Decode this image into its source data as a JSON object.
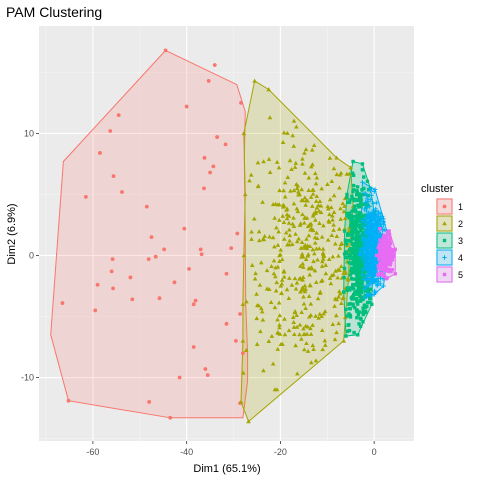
{
  "chart_data": {
    "type": "scatter",
    "title": "PAM Clustering",
    "xlabel": "Dim1 (65.1%)",
    "ylabel": "Dim2 (6.9%)",
    "xlim": [
      -71.5,
      8.5
    ],
    "ylim": [
      -15.2,
      18.8
    ],
    "x_ticks": [
      -60,
      -40,
      -20,
      0
    ],
    "y_ticks": [
      -10,
      0,
      10
    ],
    "x_tick_labels": [
      "-60",
      "-40",
      "-20",
      "0"
    ],
    "y_tick_labels": [
      "-10",
      "0",
      "10"
    ],
    "grid": true,
    "legend": {
      "title": "cluster",
      "position": "right",
      "labels": [
        "1",
        "2",
        "3",
        "4",
        "5"
      ]
    },
    "series": [
      {
        "name": "1",
        "color": "#F8766D",
        "marker": "circle",
        "hull": [
          [
            -44.5,
            16.8
          ],
          [
            -29.3,
            14.0
          ],
          [
            -27.5,
            11.8
          ],
          [
            -27.7,
            8.0
          ],
          [
            -27.5,
            2.0
          ],
          [
            -27.4,
            -4.0
          ],
          [
            -27.0,
            -8.0
          ],
          [
            -27.0,
            -10.3
          ],
          [
            -28.0,
            -13.3
          ],
          [
            -43.5,
            -13.3
          ],
          [
            -65.2,
            -11.9
          ],
          [
            -69.0,
            -6.5
          ],
          [
            -66.3,
            7.7
          ]
        ],
        "points": [
          [
            -44.5,
            16.8
          ],
          [
            -34.0,
            15.6
          ],
          [
            -35.3,
            14.3
          ],
          [
            -40.0,
            12.2
          ],
          [
            -28.4,
            12.5
          ],
          [
            -54.5,
            11.5
          ],
          [
            -56.3,
            10.2
          ],
          [
            -33.5,
            9.7
          ],
          [
            -31.7,
            9.1
          ],
          [
            -58.5,
            8.4
          ],
          [
            -36.2,
            8.0
          ],
          [
            -34.3,
            7.3
          ],
          [
            -55.6,
            6.5
          ],
          [
            -35.0,
            6.8
          ],
          [
            -36.3,
            5.5
          ],
          [
            -53.8,
            5.2
          ],
          [
            -61.5,
            4.8
          ],
          [
            -48.5,
            4.0
          ],
          [
            -40.5,
            2.2
          ],
          [
            -47.5,
            1.5
          ],
          [
            -29.2,
            1.8
          ],
          [
            -30.5,
            0.6
          ],
          [
            -37.0,
            0.5
          ],
          [
            -36.8,
            0.1
          ],
          [
            -44.8,
            0.5
          ],
          [
            -46.6,
            -0.1
          ],
          [
            -48.1,
            -0.3
          ],
          [
            -55.8,
            -0.3
          ],
          [
            -39.5,
            -1.1
          ],
          [
            -56.0,
            -1.3
          ],
          [
            -31.5,
            -1.5
          ],
          [
            -52.0,
            -1.8
          ],
          [
            -59.0,
            -2.4
          ],
          [
            -42.6,
            -2.2
          ],
          [
            -55.7,
            -2.7
          ],
          [
            -66.5,
            -3.9
          ],
          [
            -51.6,
            -3.6
          ],
          [
            -45.8,
            -3.5
          ],
          [
            -38.1,
            -3.7
          ],
          [
            -38.5,
            -4.0
          ],
          [
            -59.5,
            -4.5
          ],
          [
            -28.6,
            -4.8
          ],
          [
            -31.5,
            -5.6
          ],
          [
            -29.5,
            -7.0
          ],
          [
            -38.5,
            -7.5
          ],
          [
            -28.0,
            -8.0
          ],
          [
            -36.0,
            -9.3
          ],
          [
            -35.5,
            -9.8
          ],
          [
            -41.5,
            -10.0
          ],
          [
            -65.2,
            -11.9
          ],
          [
            -48.0,
            -12.0
          ],
          [
            -28.6,
            -12.1
          ],
          [
            -43.5,
            -13.3
          ]
        ]
      },
      {
        "name": "2",
        "color": "#A3A500",
        "marker": "triangle",
        "hull": [
          [
            -25.5,
            14.3
          ],
          [
            -22.5,
            13.6
          ],
          [
            -8.0,
            8.0
          ],
          [
            -5.0,
            7.2
          ],
          [
            -4.5,
            4.0
          ],
          [
            -5.0,
            2.0
          ],
          [
            -5.5,
            -2.0
          ],
          [
            -6.5,
            -7.0
          ],
          [
            -26.8,
            -13.6
          ],
          [
            -28.4,
            -12.0
          ],
          [
            -28.0,
            -7.0
          ],
          [
            -28.0,
            -4.0
          ],
          [
            -27.8,
            0.0
          ],
          [
            -27.5,
            5.0
          ],
          [
            -27.8,
            10.0
          ]
        ]
      },
      {
        "name": "3",
        "color": "#00BF7D",
        "marker": "square",
        "hull": [
          [
            -4.5,
            7.7
          ],
          [
            -2.5,
            7.5
          ],
          [
            -0.8,
            5.5
          ],
          [
            0.0,
            3.5
          ],
          [
            -0.5,
            -4.0
          ],
          [
            -3.5,
            -6.5
          ],
          [
            -6.0,
            -6.6
          ],
          [
            -6.5,
            -3.0
          ],
          [
            -6.3,
            2.0
          ],
          [
            -5.8,
            5.0
          ]
        ]
      },
      {
        "name": "4",
        "color": "#00B0F6",
        "marker": "cross",
        "hull": [
          [
            -2.5,
            6.0
          ],
          [
            0.2,
            5.4
          ],
          [
            2.0,
            3.0
          ],
          [
            2.7,
            2.0
          ],
          [
            3.0,
            0.5
          ],
          [
            2.0,
            -2.5
          ],
          [
            0.0,
            -3.2
          ],
          [
            -2.0,
            -3.5
          ],
          [
            -3.0,
            0.0
          ]
        ]
      },
      {
        "name": "5",
        "color": "#E76BF3",
        "marker": "square",
        "hull": [
          [
            1.2,
            2.2
          ],
          [
            3.2,
            2.0
          ],
          [
            4.5,
            0.5
          ],
          [
            4.5,
            -1.5
          ],
          [
            2.6,
            -1.9
          ],
          [
            0.8,
            -1.6
          ],
          [
            0.5,
            0.0
          ]
        ]
      }
    ]
  }
}
